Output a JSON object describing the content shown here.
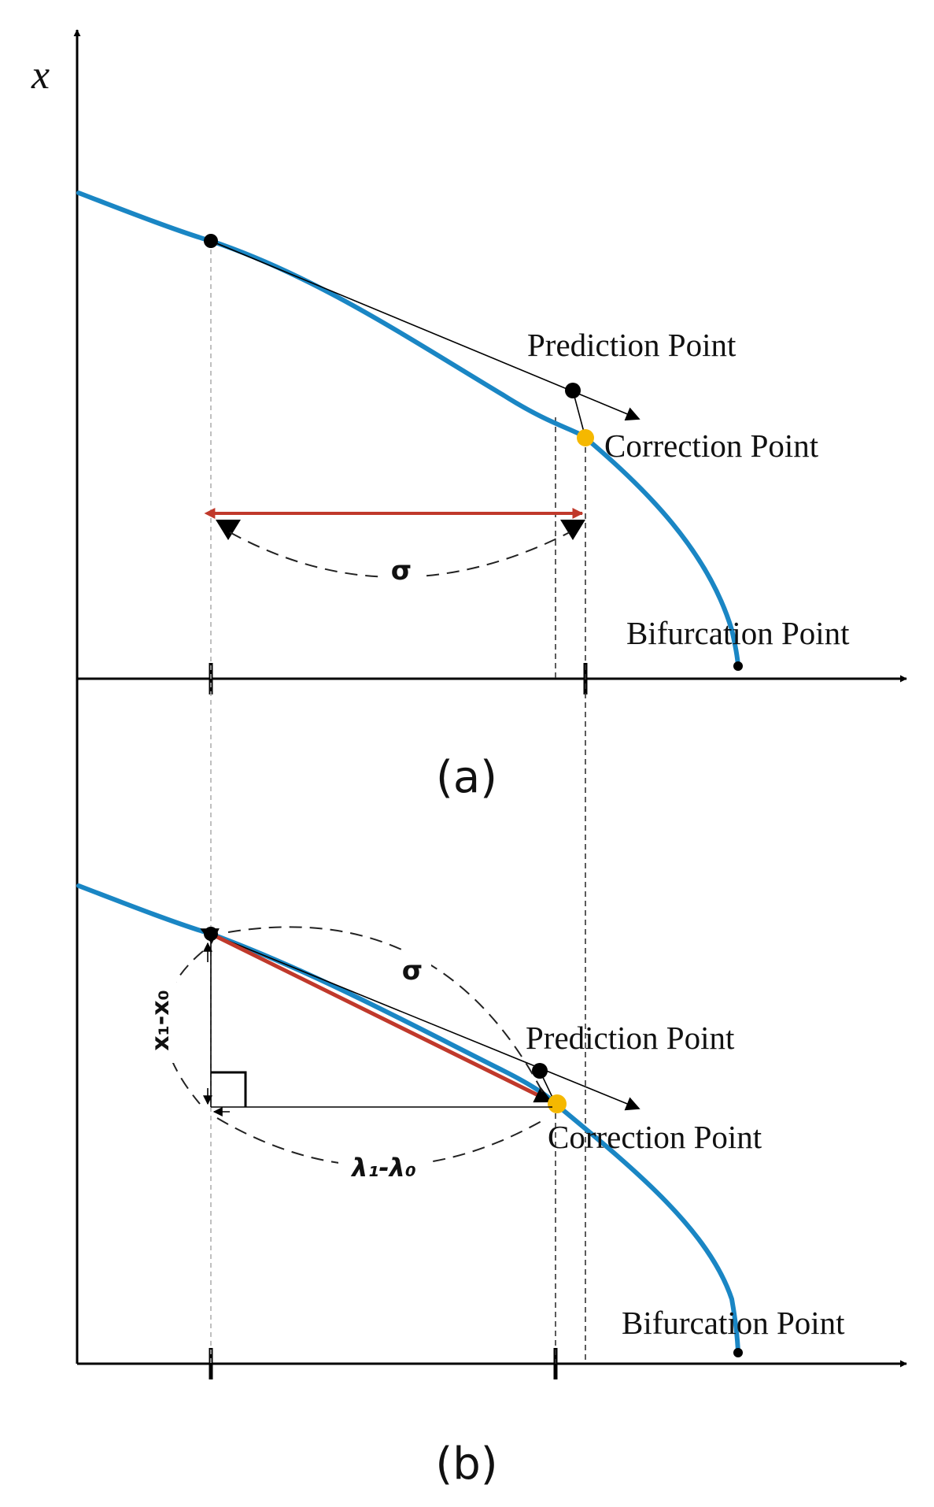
{
  "y_axis_label": "x",
  "panel_a": {
    "caption": "(a)",
    "prediction_label": "Prediction Point",
    "correction_label": "Correction Point",
    "bifurcation_label": "Bifurcation Point",
    "step_label": "σ"
  },
  "panel_b": {
    "caption": "(b)",
    "prediction_label": "Prediction Point",
    "correction_label": "Correction Point",
    "bifurcation_label": "Bifurcation Point",
    "step_label": "σ",
    "dx_label": "x₁-x₀",
    "dlambda_label": "λ₁-λ₀"
  },
  "colors": {
    "curve": "#1a86c4",
    "step_vector": "#c0392b",
    "correction_point": "#f5b800",
    "points": "#000000"
  }
}
